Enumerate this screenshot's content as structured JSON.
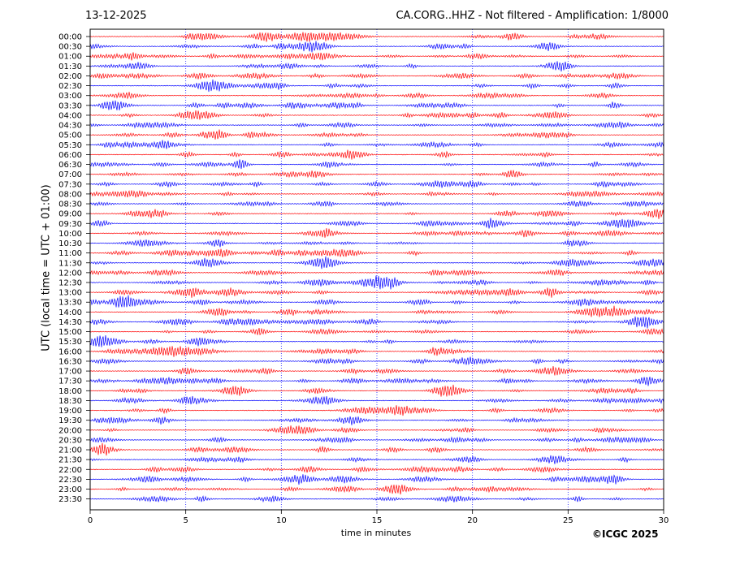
{
  "header": {
    "date": "13-12-2025",
    "title": "CA.CORG..HHZ - Not filtered - Amplification: 1/8000"
  },
  "footer": {
    "copyright": "©ICGC 2025"
  },
  "chart_data": {
    "type": "line",
    "title": "CA.CORG..HHZ - Not filtered - Amplification: 1/8000",
    "xlabel": "time in minutes",
    "ylabel": "UTC (local time = UTC + 01:00)",
    "xlim": [
      0,
      30
    ],
    "xticks": [
      0,
      5,
      10,
      15,
      20,
      25,
      30
    ],
    "grid": "vertical dotted at each x tick",
    "row_labels": [
      "00:00",
      "00:30",
      "01:00",
      "01:30",
      "02:00",
      "02:30",
      "03:00",
      "03:30",
      "04:00",
      "04:30",
      "05:00",
      "05:30",
      "06:00",
      "06:30",
      "07:00",
      "07:30",
      "08:00",
      "08:30",
      "09:00",
      "09:30",
      "10:00",
      "10:30",
      "11:00",
      "11:30",
      "12:00",
      "12:30",
      "13:00",
      "13:30",
      "14:00",
      "14:30",
      "15:00",
      "15:30",
      "16:00",
      "16:30",
      "17:00",
      "17:30",
      "18:00",
      "18:30",
      "19:00",
      "19:30",
      "20:00",
      "20:30",
      "21:00",
      "21:30",
      "22:00",
      "22:30",
      "23:00",
      "23:30"
    ],
    "trace_colors": [
      "#ff0000",
      "#0000ff"
    ],
    "grid_color": "#1a1aff"
  }
}
